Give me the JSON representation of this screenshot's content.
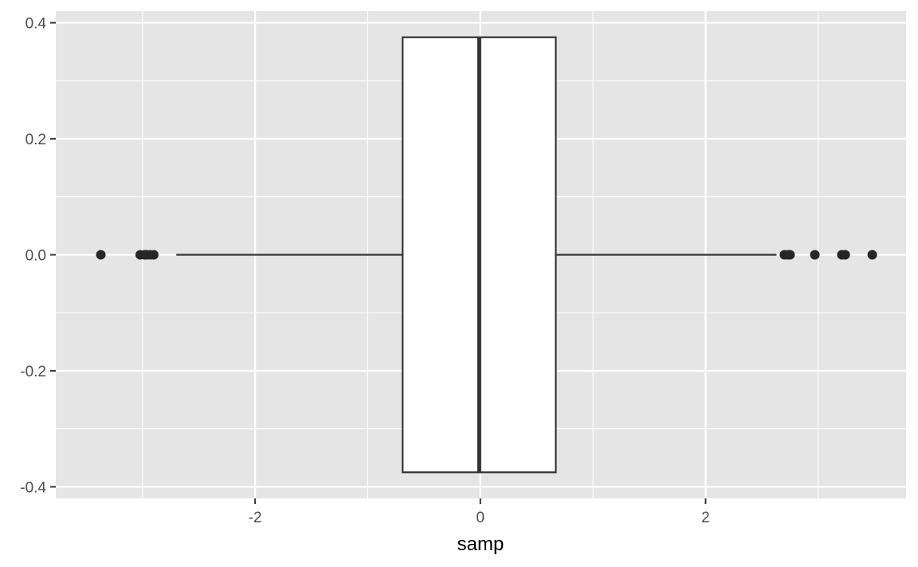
{
  "chart_data": {
    "type": "boxplot",
    "orientation": "horizontal",
    "xlabel": "samp",
    "ylabel": "",
    "xlim": [
      -3.77,
      3.78
    ],
    "ylim": [
      -0.42,
      0.42
    ],
    "x_ticks": [
      {
        "value": -2,
        "label": "-2"
      },
      {
        "value": 0,
        "label": "0"
      },
      {
        "value": 2,
        "label": "2"
      }
    ],
    "y_ticks": [
      {
        "value": 0.4,
        "label": "0.4"
      },
      {
        "value": 0.2,
        "label": "0.2"
      },
      {
        "value": 0.0,
        "label": "0.0"
      },
      {
        "value": -0.2,
        "label": "-0.2"
      },
      {
        "value": -0.4,
        "label": "-0.4"
      }
    ],
    "box": {
      "y": 0,
      "width": 0.75,
      "q1": -0.69,
      "median": -0.01,
      "q3": 0.67,
      "whisker_low": -2.7,
      "whisker_high": 2.63
    },
    "outliers": [
      -3.37,
      -3.02,
      -2.98,
      -2.96,
      -2.93,
      -2.9,
      2.7,
      2.73,
      2.75,
      2.97,
      3.21,
      3.24,
      3.48
    ],
    "colors": {
      "panel_bg": "#e5e5e5",
      "grid": "#ffffff",
      "box_fill": "#ffffff",
      "stroke": "#333333",
      "point": "#262626"
    }
  }
}
